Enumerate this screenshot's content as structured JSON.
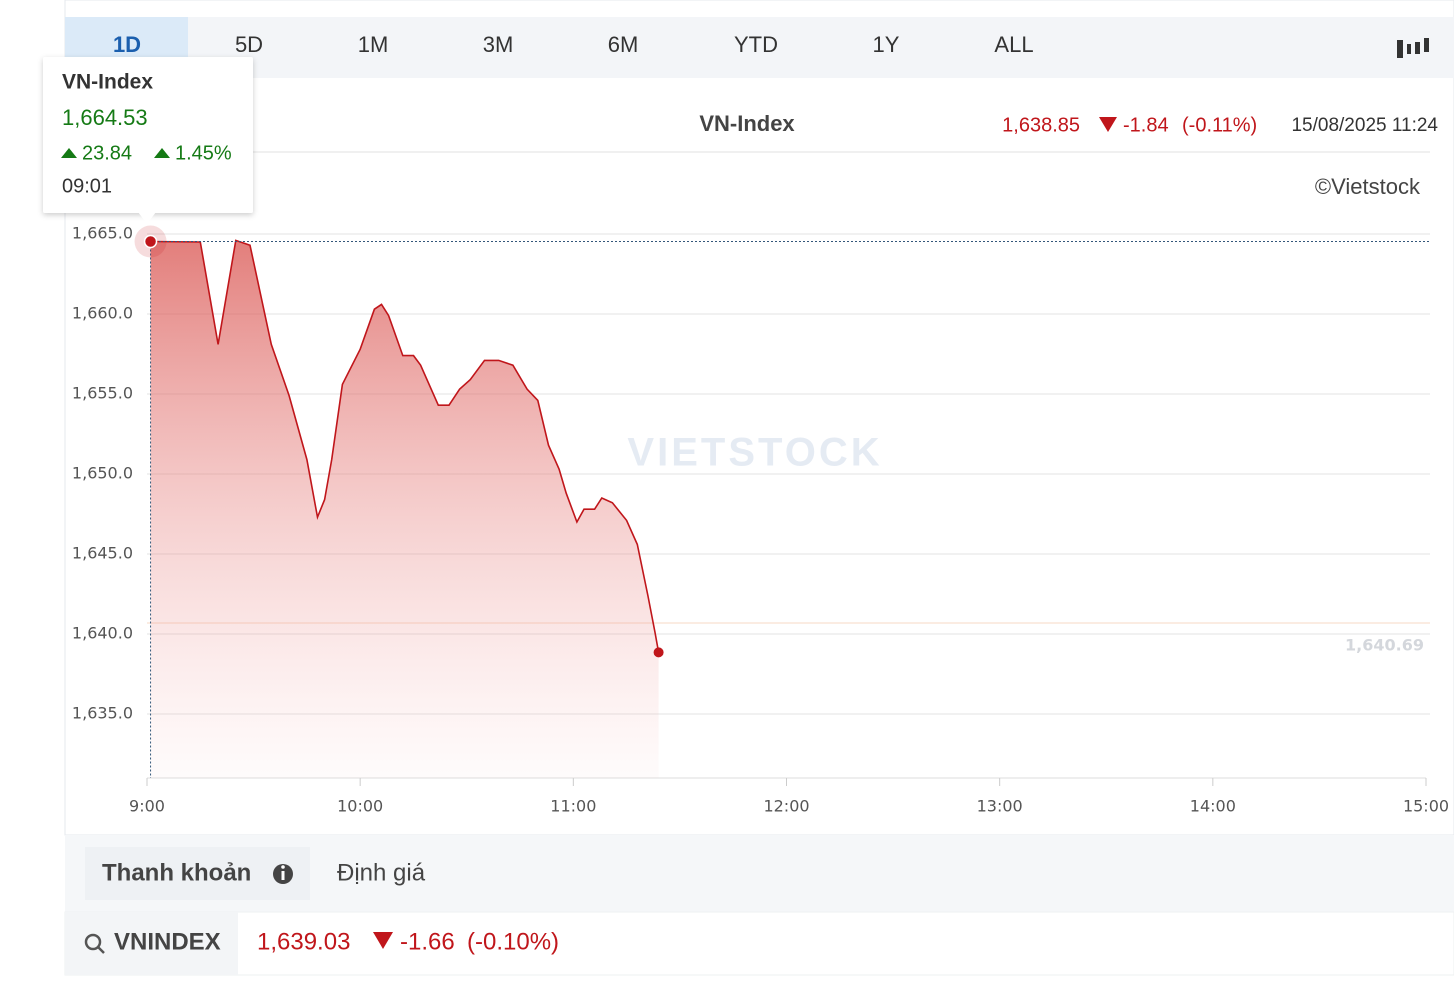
{
  "tabs": [
    "1D",
    "5D",
    "1M",
    "3M",
    "6M",
    "YTD",
    "1Y",
    "ALL"
  ],
  "header": {
    "price": "1,638.85",
    "change": "-1.84",
    "change_pct": "(-0.11%)",
    "datetime": "15/08/2025 11:24",
    "copyright": "©Vietstock"
  },
  "tooltip": {
    "title": "VN-Index",
    "price": "1,664.53",
    "change": "23.84",
    "change_pct": "1.45%",
    "time": "09:01"
  },
  "watermark": "VIETSTOCK",
  "bottom_tabs": [
    "Thanh khoản",
    "Định giá"
  ],
  "quote": {
    "symbol": "VNINDEX",
    "price": "1,639.03",
    "change": "-1.66",
    "change_pct": "(-0.10%)"
  },
  "chart_data": {
    "type": "area",
    "title": "VN-Index",
    "color": "#c0161b",
    "x": [
      "09:01",
      "09:15",
      "09:20",
      "09:25",
      "09:29",
      "09:35",
      "09:40",
      "09:45",
      "09:48",
      "09:50",
      "09:52",
      "09:55",
      "10:00",
      "10:04",
      "10:06",
      "10:08",
      "10:12",
      "10:15",
      "10:17",
      "10:22",
      "10:25",
      "10:28",
      "10:31",
      "10:35",
      "10:39",
      "10:43",
      "10:47",
      "10:50",
      "10:53",
      "10:56",
      "10:58",
      "11:01",
      "11:03",
      "11:06",
      "11:08",
      "11:11",
      "11:15",
      "11:18",
      "11:21",
      "11:23",
      "11:24"
    ],
    "values": [
      1664.53,
      1664.5,
      1658.1,
      1664.6,
      1664.3,
      1658.1,
      1654.9,
      1650.9,
      1647.3,
      1648.4,
      1650.9,
      1655.6,
      1657.8,
      1660.3,
      1660.6,
      1659.9,
      1657.4,
      1657.4,
      1656.8,
      1654.3,
      1654.3,
      1655.3,
      1655.9,
      1657.1,
      1657.1,
      1656.8,
      1655.3,
      1654.6,
      1651.8,
      1650.3,
      1648.8,
      1647.0,
      1647.8,
      1647.8,
      1648.5,
      1648.2,
      1647.1,
      1645.6,
      1642.4,
      1640.1,
      1638.85
    ],
    "xlim": [
      "9:00",
      "15:00"
    ],
    "xticks": [
      "9:00",
      "10:00",
      "11:00",
      "12:00",
      "13:00",
      "14:00",
      "15:00"
    ],
    "ylim": [
      1631,
      1670.5
    ],
    "yticks": [
      {
        "value": 1635,
        "label": "1,635.0"
      },
      {
        "value": 1640,
        "label": "1,640.0"
      },
      {
        "value": 1645,
        "label": "1,645.0"
      },
      {
        "value": 1650,
        "label": "1,650.0"
      },
      {
        "value": 1655,
        "label": "1,655.0"
      },
      {
        "value": 1660,
        "label": "1,660.0"
      },
      {
        "value": 1665,
        "label": "1,665.0"
      }
    ],
    "reference_line": {
      "value": 1640.69,
      "label": "1,640.69"
    },
    "grid": true
  }
}
